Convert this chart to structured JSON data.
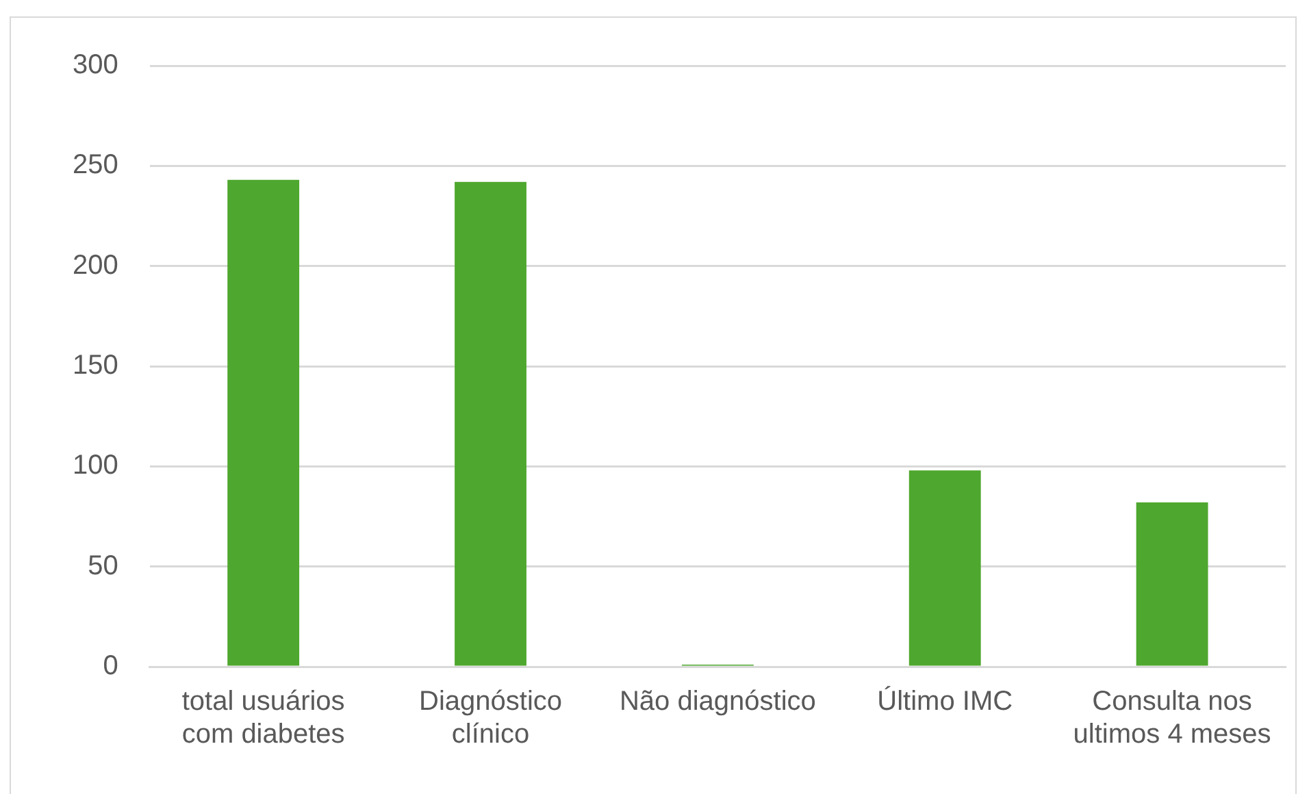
{
  "chart_data": {
    "type": "bar",
    "categories": [
      "total usuários com diabetes",
      "Diagnóstico clínico",
      "Não diagnóstico",
      "Último IMC",
      "Consulta nos ultimos 4 meses"
    ],
    "values": [
      243,
      242,
      1,
      98,
      82
    ],
    "color": "#4ea72e",
    "ylim": [
      0,
      300
    ],
    "yticks": [
      0,
      50,
      100,
      150,
      200,
      250,
      300
    ],
    "grid": "y"
  }
}
